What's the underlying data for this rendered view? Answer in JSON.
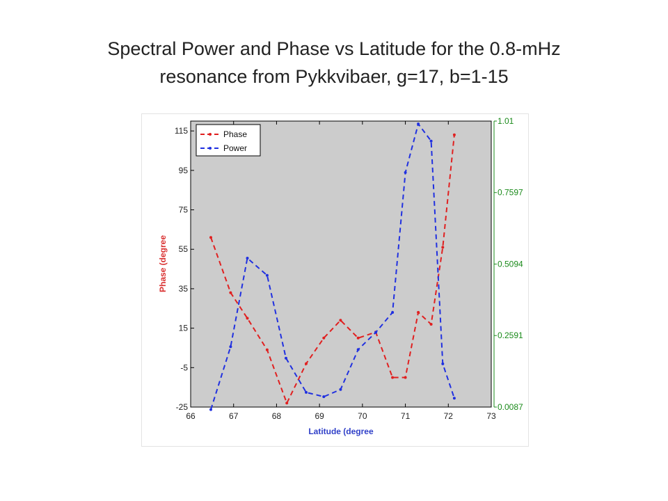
{
  "slide": {
    "title_line1": "Spectral Power and Phase vs Latitude for the 0.8-mHz",
    "title_line2": "resonance from Pykkvibaer, g=17, b=1-15"
  },
  "chart_data": {
    "type": "line",
    "xlabel": "Latitude (degree",
    "ylabel": "Phase (degree",
    "xlim": [
      66,
      73
    ],
    "ylim_left": [
      -25,
      120
    ],
    "ylim_right": [
      0.0087,
      1.01
    ],
    "x_ticks": [
      "66",
      "67",
      "68",
      "69",
      "70",
      "71",
      "72",
      "73"
    ],
    "y_ticks_left": [
      "-25",
      "-5",
      "15",
      "35",
      "55",
      "75",
      "95",
      "115"
    ],
    "y_ticks_right": [
      "0.0087",
      "0.2591",
      "0.5094",
      "0.7597",
      "1.01"
    ],
    "grid": false,
    "background": "#cccccc",
    "legend_position": "top-left",
    "series": [
      {
        "name": "Phase",
        "axis": "left",
        "color": "#e02020",
        "style": "dashed",
        "x": [
          66.47,
          66.93,
          67.32,
          67.78,
          68.24,
          68.69,
          69.1,
          69.49,
          69.9,
          70.31,
          70.7,
          71.0,
          71.3,
          71.6,
          71.87,
          72.14
        ],
        "y": [
          61,
          33,
          20,
          4,
          -23,
          -3,
          10,
          19,
          10,
          13,
          -10,
          -10,
          23,
          17,
          56,
          113
        ]
      },
      {
        "name": "Power",
        "axis": "right",
        "color": "#2030e0",
        "style": "dashed",
        "x": [
          66.47,
          66.93,
          67.32,
          67.78,
          68.22,
          68.69,
          69.1,
          69.49,
          69.9,
          70.31,
          70.7,
          71.0,
          71.3,
          71.6,
          71.87,
          72.14
        ],
        "y": [
          0.0,
          0.22,
          0.53,
          0.47,
          0.18,
          0.06,
          0.045,
          0.07,
          0.21,
          0.27,
          0.34,
          0.83,
          1.0,
          0.94,
          0.16,
          0.04
        ]
      }
    ]
  }
}
